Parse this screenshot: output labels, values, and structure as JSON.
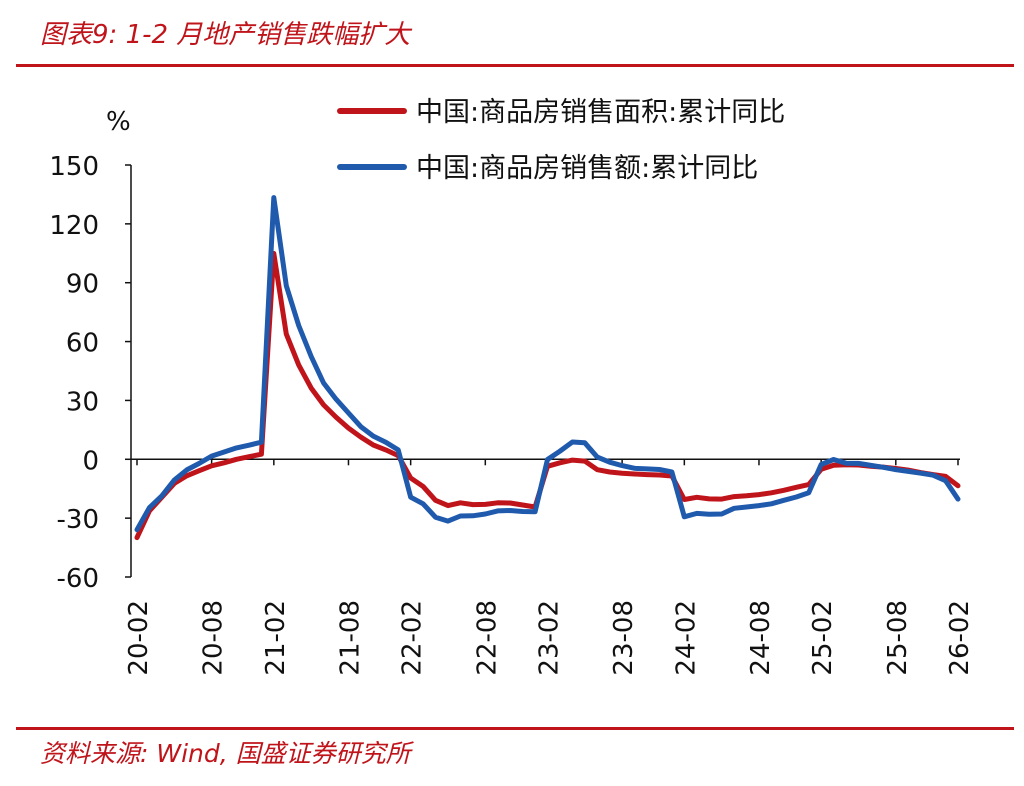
{
  "title": "图表9:  1-2 月地产销售跌幅扩大",
  "source": "资料来源:  Wind,  国盛证券研究所",
  "chart_data": {
    "type": "line",
    "y_unit": "%",
    "ylim": [
      -60,
      150
    ],
    "y_ticks": [
      "150",
      "120",
      "90",
      "60",
      "30",
      "0",
      "-30",
      "-60"
    ],
    "x_ticks": [
      "20-02",
      "20-08",
      "21-02",
      "21-08",
      "22-02",
      "22-08",
      "23-02",
      "23-08",
      "24-02",
      "24-08",
      "25-02",
      "25-08",
      "26-02"
    ],
    "grid": false,
    "legend_position": "top-right",
    "x": [
      "20-02",
      "20-03",
      "20-04",
      "20-05",
      "20-06",
      "20-07",
      "20-08",
      "20-09",
      "20-10",
      "20-11",
      "20-12",
      "21-02",
      "21-03",
      "21-04",
      "21-05",
      "21-06",
      "21-07",
      "21-08",
      "21-09",
      "21-10",
      "21-11",
      "21-12",
      "22-02",
      "22-03",
      "22-04",
      "22-05",
      "22-06",
      "22-07",
      "22-08",
      "22-09",
      "22-10",
      "22-11",
      "22-12",
      "23-02",
      "23-03",
      "23-04",
      "23-05",
      "23-06",
      "23-07",
      "23-08",
      "23-09",
      "23-10",
      "23-11",
      "23-12",
      "24-02",
      "24-03",
      "24-04",
      "24-05",
      "24-06",
      "24-07",
      "24-08",
      "24-09",
      "24-10",
      "24-11",
      "24-12",
      "25-02",
      "25-03",
      "25-04",
      "25-05",
      "25-06",
      "25-07",
      "25-08",
      "25-09",
      "25-10",
      "25-11",
      "25-12",
      "26-02"
    ],
    "series": [
      {
        "name": "中国:商品房销售面积:累计同比",
        "color": "#c0141b",
        "values": [
          -39.9,
          -26.3,
          -19.3,
          -12.3,
          -8.4,
          -5.8,
          -3.3,
          -1.8,
          0,
          1.3,
          2.6,
          104.9,
          63.8,
          48.1,
          36.3,
          27.7,
          21.5,
          15.9,
          11.3,
          7.3,
          4.8,
          1.9,
          -9.6,
          -13.8,
          -20.9,
          -23.6,
          -22.2,
          -23.1,
          -23,
          -22.2,
          -22.3,
          -23.3,
          -24.3,
          -3.6,
          -1.8,
          -0.4,
          -0.9,
          -5.3,
          -6.5,
          -7.1,
          -7.5,
          -7.8,
          -8,
          -8.5,
          -20.5,
          -19.4,
          -20.2,
          -20.3,
          -19,
          -18.6,
          -18,
          -17.1,
          -15.8,
          -14.3,
          -12.9,
          -5.1,
          -3,
          -2.8,
          -2.9,
          -3.5,
          -4,
          -4.7,
          -5.5,
          -6.8,
          -7.8,
          -8.7,
          -13.5
        ]
      },
      {
        "name": "中国:商品房销售额:累计同比",
        "color": "#1f5aad",
        "values": [
          -35.9,
          -24.7,
          -18.6,
          -10.6,
          -5.4,
          -2.1,
          1.6,
          3.7,
          5.8,
          7.2,
          8.7,
          133.4,
          88.5,
          68.2,
          52.4,
          38.9,
          30.7,
          23.6,
          16.6,
          11.8,
          8.7,
          4.8,
          -19.3,
          -22.7,
          -29.5,
          -31.5,
          -28.9,
          -28.8,
          -27.9,
          -26.3,
          -26.1,
          -26.6,
          -26.7,
          -0.1,
          4.1,
          8.8,
          8.4,
          1.1,
          -1.5,
          -3.2,
          -4.6,
          -4.9,
          -5.2,
          -6.5,
          -29.3,
          -27.6,
          -28,
          -27.9,
          -25,
          -24.3,
          -23.6,
          -22.7,
          -20.9,
          -19.2,
          -17.1,
          -2.6,
          -0.1,
          -2,
          -2.1,
          -3.1,
          -4.1,
          -5.3,
          -6.2,
          -7.1,
          -8.1,
          -10.9,
          -20.3
        ]
      }
    ]
  }
}
